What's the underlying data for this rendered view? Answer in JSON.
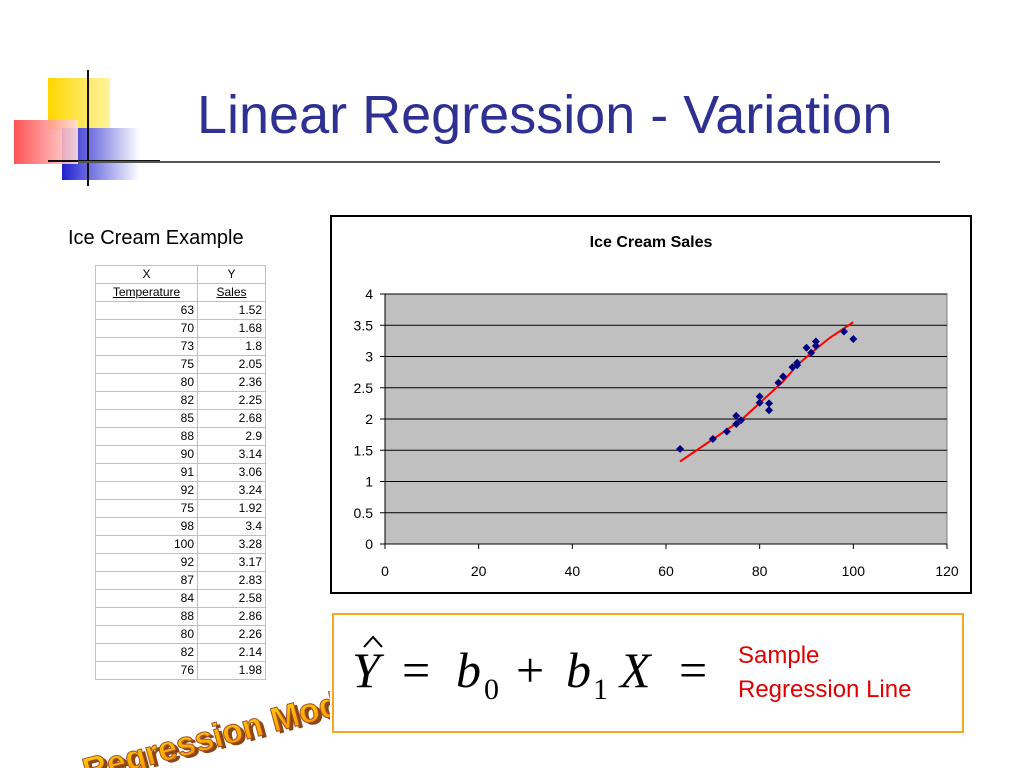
{
  "slide": {
    "title": "Linear Regression - Variation",
    "table_title": "Ice Cream Example",
    "wordart_text": "Regression Model"
  },
  "table": {
    "col_x": "X",
    "col_y": "Y",
    "col_x_sub": "Temperature",
    "col_y_sub": "Sales",
    "rows": [
      [
        "63",
        "1.52"
      ],
      [
        "70",
        "1.68"
      ],
      [
        "73",
        "1.8"
      ],
      [
        "75",
        "2.05"
      ],
      [
        "80",
        "2.36"
      ],
      [
        "82",
        "2.25"
      ],
      [
        "85",
        "2.68"
      ],
      [
        "88",
        "2.9"
      ],
      [
        "90",
        "3.14"
      ],
      [
        "91",
        "3.06"
      ],
      [
        "92",
        "3.24"
      ],
      [
        "75",
        "1.92"
      ],
      [
        "98",
        "3.4"
      ],
      [
        "100",
        "3.28"
      ],
      [
        "92",
        "3.17"
      ],
      [
        "87",
        "2.83"
      ],
      [
        "84",
        "2.58"
      ],
      [
        "88",
        "2.86"
      ],
      [
        "80",
        "2.26"
      ],
      [
        "82",
        "2.14"
      ],
      [
        "76",
        "1.98"
      ]
    ]
  },
  "equation": {
    "label_line1": "Sample",
    "label_line2": "Regression Line"
  },
  "chart_data": {
    "type": "scatter",
    "title": "Ice Cream Sales",
    "xlim": [
      0,
      120
    ],
    "ylim": [
      0,
      4
    ],
    "x_ticks": [
      0,
      20,
      40,
      60,
      80,
      100,
      120
    ],
    "y_ticks": [
      0,
      0.5,
      1,
      1.5,
      2,
      2.5,
      3,
      3.5,
      4
    ],
    "x_tick_labels": [
      "0",
      "20",
      "40",
      "60",
      "80",
      "100",
      "120"
    ],
    "y_tick_labels": [
      "0",
      "0.5",
      "1",
      "1.5",
      "2",
      "2.5",
      "3",
      "3.5",
      "4"
    ],
    "grid": true,
    "legend": "none",
    "points": [
      [
        63,
        1.52
      ],
      [
        70,
        1.68
      ],
      [
        73,
        1.8
      ],
      [
        75,
        2.05
      ],
      [
        80,
        2.36
      ],
      [
        82,
        2.25
      ],
      [
        85,
        2.68
      ],
      [
        88,
        2.9
      ],
      [
        90,
        3.14
      ],
      [
        91,
        3.06
      ],
      [
        92,
        3.24
      ],
      [
        75,
        1.92
      ],
      [
        98,
        3.4
      ],
      [
        100,
        3.28
      ],
      [
        92,
        3.17
      ],
      [
        87,
        2.83
      ],
      [
        84,
        2.58
      ],
      [
        88,
        2.86
      ],
      [
        80,
        2.26
      ],
      [
        82,
        2.14
      ],
      [
        76,
        1.98
      ]
    ],
    "fit_line": [
      [
        63,
        1.32
      ],
      [
        76,
        1.98
      ],
      [
        85,
        2.6
      ],
      [
        88,
        2.86
      ],
      [
        92,
        3.12
      ],
      [
        95,
        3.3
      ],
      [
        100,
        3.55
      ]
    ],
    "colors": {
      "plot_bg": "#c0c0c0",
      "point": "#000080",
      "fit_line": "#ff0000"
    }
  }
}
